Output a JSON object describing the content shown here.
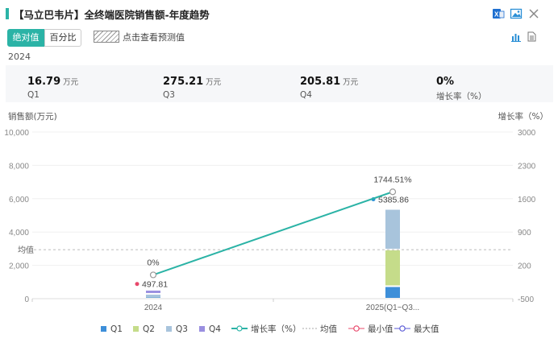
{
  "header": {
    "title": "【马立巴韦片】全终端医院销售额-年度趋势",
    "icons": [
      "export-excel-icon",
      "image-icon",
      "close-icon"
    ]
  },
  "toolbar": {
    "toggle_absolute": "绝对值",
    "toggle_percent": "百分比",
    "predict_label": "点击查看预测值",
    "view_icons": [
      "bar-chart-icon",
      "document-icon"
    ]
  },
  "summary": {
    "year": "2024",
    "items": [
      {
        "value": "16.79",
        "unit": "万元",
        "label": "Q1"
      },
      {
        "value": "275.21",
        "unit": "万元",
        "label": "Q3"
      },
      {
        "value": "205.81",
        "unit": "万元",
        "label": "Q4"
      },
      {
        "value": "0%",
        "unit": "",
        "label": "增长率（%）"
      }
    ]
  },
  "chart_data": {
    "type": "bar",
    "categories": [
      "2024",
      "2025(Q1~Q3..."
    ],
    "ylabel": "销售额(万元)",
    "y2label": "增长率（%）",
    "ylim": [
      0,
      10000
    ],
    "y2lim": [
      -500,
      3000
    ],
    "yticks": [
      "10,000",
      "8,000",
      "6,000",
      "4,000",
      "2,000",
      "0"
    ],
    "y2ticks": [
      "3000",
      "2300",
      "1600",
      "900",
      "200",
      "-500"
    ],
    "series": [
      {
        "name": "Q1",
        "color": "#3d8fd9",
        "values": [
          16.79,
          750
        ]
      },
      {
        "name": "Q2",
        "color": "#c5dc8a",
        "values": [
          0,
          2200
        ]
      },
      {
        "name": "Q3",
        "color": "#a8c4dc",
        "values": [
          275.21,
          2435.86
        ]
      },
      {
        "name": "Q4",
        "color": "#9a8fe0",
        "values": [
          205.81,
          0
        ]
      }
    ],
    "totals": [
      497.81,
      5385.86
    ],
    "total_labels": [
      "497.81",
      "5385.86"
    ],
    "growth": {
      "name": "增长率（%）",
      "color": "#2bb3a6",
      "values": [
        0,
        1744.51
      ],
      "labels": [
        "0%",
        "1744.51%"
      ]
    },
    "mean": {
      "name": "均值",
      "label": "均值",
      "value": 2940
    },
    "min_label": "最小值",
    "max_label": "最大值",
    "legend_position": "bottom"
  }
}
